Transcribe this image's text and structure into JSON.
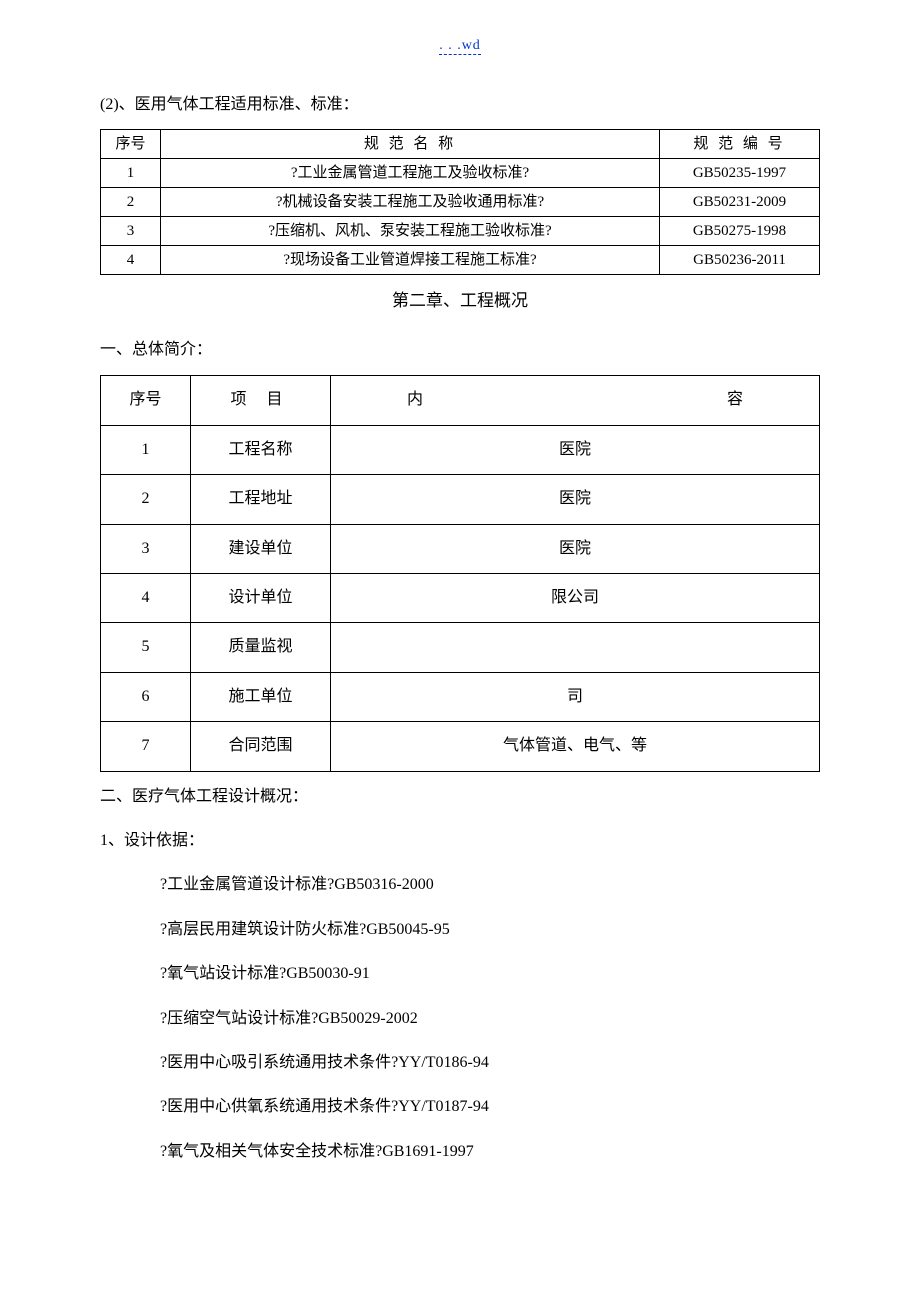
{
  "headerLink": ". . .wd",
  "sec2": {
    "title": "(2)、医用气体工程适用标准、标准：",
    "table": {
      "headers": {
        "no": "序号",
        "name": "规 范 名 称",
        "code": "规 范 编 号"
      },
      "rows": [
        {
          "no": "1",
          "name": "?工业金属管道工程施工及验收标准?",
          "code": "GB50235-1997"
        },
        {
          "no": "2",
          "name": "?机械设备安装工程施工及验收通用标准?",
          "code": "GB50231-2009"
        },
        {
          "no": "3",
          "name": "?压缩机、风机、泵安装工程施工验收标准?",
          "code": "GB50275-1998"
        },
        {
          "no": "4",
          "name": "?现场设备工业管道焊接工程施工标准?",
          "code": "GB50236-2011"
        }
      ]
    }
  },
  "chapter2": {
    "title": "第二章、工程概况",
    "sec1": {
      "title": "一、总体简介：",
      "table": {
        "headers": {
          "no": "序号",
          "item": "项 目",
          "content_left": "内",
          "content_right": "容"
        },
        "rows": [
          {
            "no": "1",
            "item": "工程名称",
            "content": "医院"
          },
          {
            "no": "2",
            "item": "工程地址",
            "content": "医院"
          },
          {
            "no": "3",
            "item": "建设单位",
            "content": "医院"
          },
          {
            "no": "4",
            "item": "设计单位",
            "content": "限公司"
          },
          {
            "no": "5",
            "item": "质量监视",
            "content": ""
          },
          {
            "no": "6",
            "item": "施工单位",
            "content": "司"
          },
          {
            "no": "7",
            "item": "合同范围",
            "content": "气体管道、电气、等"
          }
        ]
      }
    },
    "sec2": {
      "title": "二、医疗气体工程设计概况：",
      "sub1": {
        "title": "1、设计依据：",
        "items": [
          "?工业金属管道设计标准?GB50316-2000",
          "?高层民用建筑设计防火标准?GB50045-95",
          "?氧气站设计标准?GB50030-91",
          "?压缩空气站设计标准?GB50029-2002",
          "?医用中心吸引系统通用技术条件?YY/T0186-94",
          "?医用中心供氧系统通用技术条件?YY/T0187-94",
          "?氧气及相关气体安全技术标准?GB1691-1997"
        ]
      }
    }
  }
}
